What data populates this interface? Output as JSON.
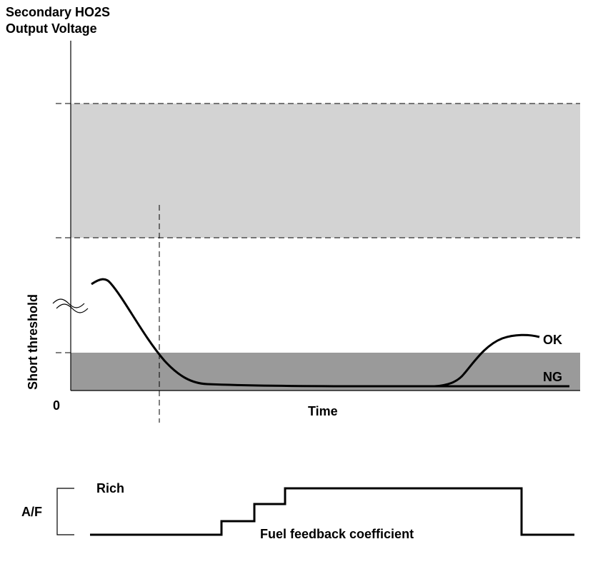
{
  "y_axis_title": [
    "Secondary HO2S",
    "Output Voltage"
  ],
  "y_axis_side_label": "Short threshold",
  "origin_label": "0",
  "x_axis_label": "Time",
  "curve_labels": {
    "ok": "OK",
    "ng": "NG"
  },
  "af": {
    "axis_label": "A/F",
    "rich_label": "Rich",
    "signal_label": "Fuel feedback coefficient"
  },
  "colors": {
    "upper_band": "#d3d3d3",
    "lower_band": "#9a9a9a",
    "line": "#000000",
    "background": "#ffffff"
  }
}
